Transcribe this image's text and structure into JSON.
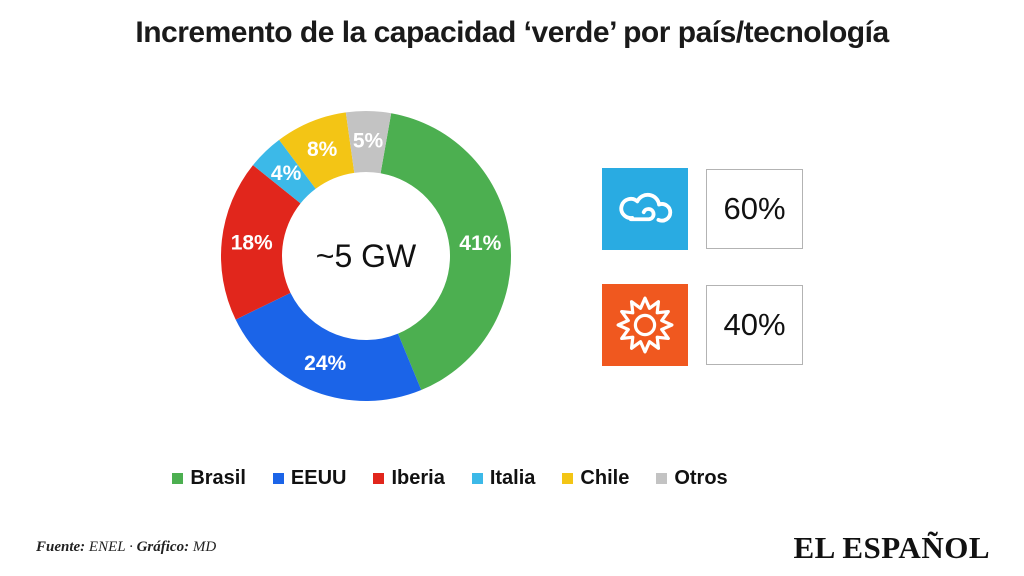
{
  "title": "Incremento de la capacidad ‘verde’ por país/tecnología",
  "chart_data": {
    "type": "pie",
    "subtype": "donut",
    "title": "Incremento de la capacidad ‘verde’ por país/tecnología",
    "center_label": "~5 GW",
    "labels_format": "percent",
    "legend_position": "bottom",
    "series": [
      {
        "name": "Brasil",
        "value": 41,
        "label": "41%",
        "color": "#4caf50"
      },
      {
        "name": "EEUU",
        "value": 24,
        "label": "24%",
        "color": "#1b64e8"
      },
      {
        "name": "Iberia",
        "value": 18,
        "label": "18%",
        "color": "#e1261c"
      },
      {
        "name": "Italia",
        "value": 4,
        "label": "4%",
        "color": "#3cb9e8"
      },
      {
        "name": "Chile",
        "value": 8,
        "label": "8%",
        "color": "#f3c515"
      },
      {
        "name": "Otros",
        "value": 5,
        "label": "5%",
        "color": "#c3c3c3"
      }
    ],
    "technology": [
      {
        "name": "wind",
        "icon": "wind-cloud-icon",
        "value": 60,
        "value_label": "60%",
        "color": "#29abe2"
      },
      {
        "name": "solar",
        "icon": "sun-icon",
        "value": 40,
        "value_label": "40%",
        "color": "#f0581f"
      }
    ]
  },
  "icons": {
    "wind": "cloud-with-wind-swirl",
    "solar": "sun-burst-outline"
  },
  "footer": {
    "source_label": "Fuente:",
    "source_value": " ENEL · ",
    "credit_label": "Gráfico:",
    "credit_value": " MD",
    "brand": "EL ESPAÑOL"
  }
}
